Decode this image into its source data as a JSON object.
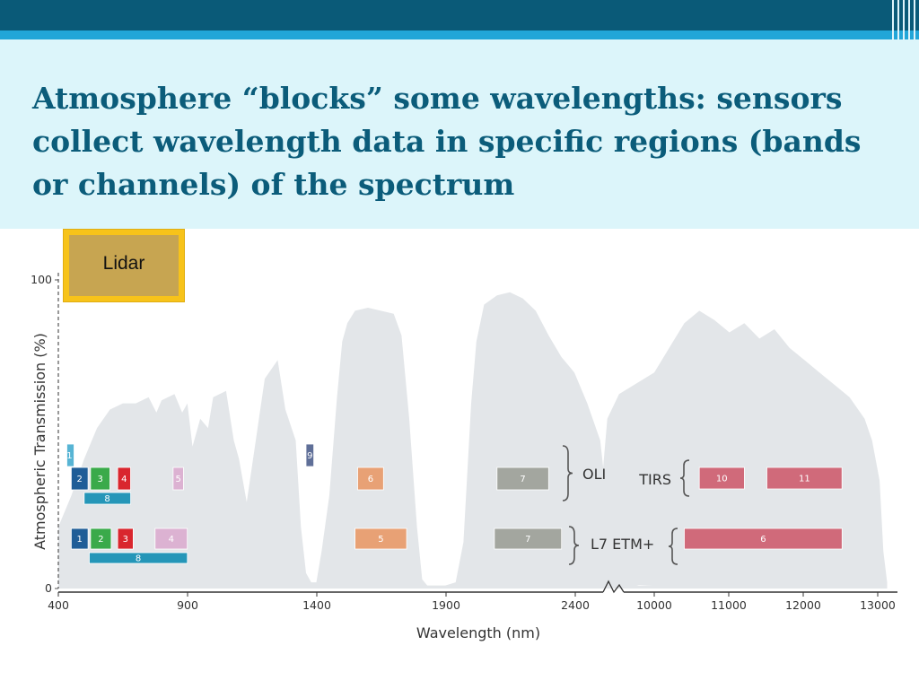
{
  "slide": {
    "title": "Atmosphere “blocks” some wavelengths: sensors collect wavelength data in specific regions (bands or channels) of the spectrum",
    "callout": "Lidar"
  },
  "colors": {
    "header_dark": "#0a5a78",
    "header_light": "#21a6d8",
    "title_band": "#dcf5fa",
    "title_text": "#0b5c7a",
    "callout_fill": "#c7a551",
    "callout_border": "#f7c31a",
    "transmission_fill": "#e3e6e9"
  },
  "chart_data": {
    "type": "area",
    "xlabel": "Wavelength (nm)",
    "ylabel": "Atmospheric Transmission (%)",
    "ylim": [
      0,
      100
    ],
    "y_ticks": [
      "0",
      "100"
    ],
    "x_ticks": [
      "400",
      "900",
      "1400",
      "1900",
      "2400",
      "10000",
      "11000",
      "12000",
      "13000"
    ],
    "axis_break_between": [
      "2400",
      "10000"
    ],
    "transmission_series": {
      "name": "",
      "points": [
        [
          400,
          20
        ],
        [
          450,
          30
        ],
        [
          500,
          42
        ],
        [
          550,
          52
        ],
        [
          600,
          58
        ],
        [
          650,
          60
        ],
        [
          700,
          60
        ],
        [
          750,
          62
        ],
        [
          780,
          57
        ],
        [
          800,
          61
        ],
        [
          850,
          63
        ],
        [
          880,
          57
        ],
        [
          900,
          60
        ],
        [
          920,
          46
        ],
        [
          950,
          55
        ],
        [
          980,
          52
        ],
        [
          1000,
          62
        ],
        [
          1050,
          64
        ],
        [
          1080,
          48
        ],
        [
          1100,
          42
        ],
        [
          1130,
          28
        ],
        [
          1160,
          45
        ],
        [
          1200,
          68
        ],
        [
          1250,
          74
        ],
        [
          1280,
          58
        ],
        [
          1320,
          48
        ],
        [
          1340,
          20
        ],
        [
          1360,
          5
        ],
        [
          1380,
          2
        ],
        [
          1400,
          2
        ],
        [
          1420,
          12
        ],
        [
          1450,
          30
        ],
        [
          1480,
          62
        ],
        [
          1500,
          80
        ],
        [
          1520,
          86
        ],
        [
          1550,
          90
        ],
        [
          1600,
          91
        ],
        [
          1650,
          90
        ],
        [
          1700,
          89
        ],
        [
          1730,
          82
        ],
        [
          1760,
          55
        ],
        [
          1790,
          20
        ],
        [
          1810,
          3
        ],
        [
          1830,
          1
        ],
        [
          1850,
          1
        ],
        [
          1900,
          1
        ],
        [
          1940,
          2
        ],
        [
          1970,
          15
        ],
        [
          2000,
          60
        ],
        [
          2020,
          80
        ],
        [
          2050,
          92
        ],
        [
          2100,
          95
        ],
        [
          2150,
          96
        ],
        [
          2200,
          94
        ],
        [
          2250,
          90
        ],
        [
          2300,
          82
        ],
        [
          2350,
          75
        ],
        [
          2400,
          70
        ],
        [
          2450,
          60
        ],
        [
          2500,
          48
        ],
        [
          2530,
          25
        ],
        [
          2560,
          8
        ],
        [
          2600,
          2
        ],
        [
          2650,
          1
        ],
        [
          2700,
          1
        ],
        [
          9400,
          2
        ],
        [
          9550,
          10
        ],
        [
          9700,
          55
        ],
        [
          9850,
          63
        ],
        [
          10000,
          70
        ],
        [
          10200,
          78
        ],
        [
          10400,
          86
        ],
        [
          10600,
          90
        ],
        [
          10800,
          87
        ],
        [
          11000,
          83
        ],
        [
          11200,
          86
        ],
        [
          11400,
          81
        ],
        [
          11600,
          84
        ],
        [
          11800,
          78
        ],
        [
          12000,
          74
        ],
        [
          12200,
          70
        ],
        [
          12400,
          66
        ],
        [
          12600,
          62
        ],
        [
          12800,
          55
        ],
        [
          12900,
          48
        ],
        [
          13000,
          35
        ],
        [
          13050,
          12
        ],
        [
          13100,
          2
        ]
      ]
    },
    "sensors": [
      {
        "name": "OLI",
        "bands": [
          {
            "label": "1",
            "start": 433,
            "end": 453,
            "color": "#57b4d4"
          },
          {
            "label": "2",
            "start": 450,
            "end": 515,
            "color": "#1f5d97"
          },
          {
            "label": "3",
            "start": 525,
            "end": 600,
            "color": "#3aaa4a"
          },
          {
            "label": "4",
            "start": 630,
            "end": 680,
            "color": "#d9262e"
          },
          {
            "label": "5",
            "start": 845,
            "end": 885,
            "color": "#dcb2d2"
          },
          {
            "label": "6",
            "start": 1560,
            "end": 1660,
            "color": "#e8a175"
          },
          {
            "label": "7",
            "start": 2100,
            "end": 2300,
            "color": "#a3a69f"
          },
          {
            "label": "8",
            "start": 500,
            "end": 680,
            "color": "#2596b8"
          },
          {
            "label": "9",
            "start": 1360,
            "end": 1390,
            "color": "#5f6f98"
          }
        ]
      },
      {
        "name": "TIRS",
        "bands": [
          {
            "label": "10",
            "start": 10600,
            "end": 11200,
            "color": "#d06a7a"
          },
          {
            "label": "11",
            "start": 11500,
            "end": 12500,
            "color": "#d06a7a"
          }
        ]
      },
      {
        "name": "L7 ETM+",
        "bands": [
          {
            "label": "1",
            "start": 450,
            "end": 515,
            "color": "#1f5d97"
          },
          {
            "label": "2",
            "start": 525,
            "end": 605,
            "color": "#3aaa4a"
          },
          {
            "label": "3",
            "start": 630,
            "end": 690,
            "color": "#d9262e"
          },
          {
            "label": "4",
            "start": 775,
            "end": 900,
            "color": "#dcb2d2"
          },
          {
            "label": "5",
            "start": 1550,
            "end": 1750,
            "color": "#e8a175"
          },
          {
            "label": "7",
            "start": 2090,
            "end": 2350,
            "color": "#a3a69f"
          },
          {
            "label": "8",
            "start": 520,
            "end": 900,
            "color": "#2596b8"
          },
          {
            "label": "6",
            "start": 10400,
            "end": 12500,
            "color": "#d06a7a"
          }
        ]
      }
    ]
  }
}
